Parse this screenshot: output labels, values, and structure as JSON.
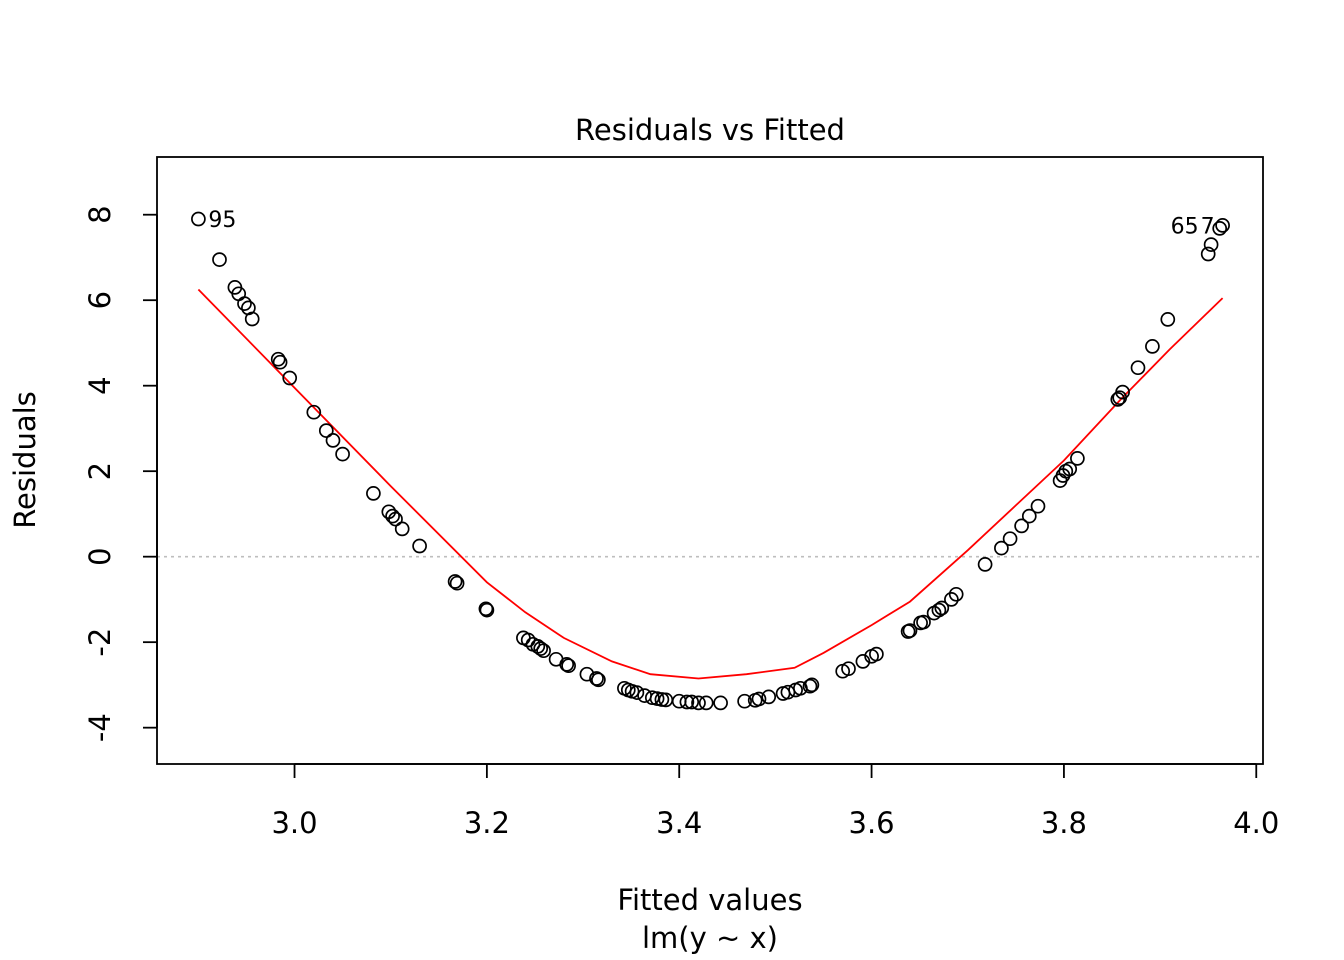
{
  "chart_data": {
    "type": "scatter",
    "title": "Residuals vs Fitted",
    "xlabel": "Fitted values",
    "subtitle": "lm(y ~ x)",
    "ylabel": "Residuals",
    "xlim": [
      2.857,
      4.007
    ],
    "ylim": [
      -4.85,
      9.35
    ],
    "xticks": [
      3.0,
      3.2,
      3.4,
      3.6,
      3.8,
      4.0
    ],
    "xtick_labels": [
      "3.0",
      "3.2",
      "3.4",
      "3.6",
      "3.8",
      "4.0"
    ],
    "yticks": [
      -4,
      -2,
      0,
      2,
      4,
      6,
      8
    ],
    "ytick_labels": [
      "-4",
      "-2",
      "0",
      "2",
      "4",
      "6",
      "8"
    ],
    "reference_line": 0,
    "point_labels": [
      {
        "x": 2.9,
        "y": 7.9,
        "label": "95",
        "side": "right"
      },
      {
        "x": 3.965,
        "y": 7.75,
        "label": "65",
        "side": "left"
      },
      {
        "x": 3.965,
        "y": 7.75,
        "label": "7",
        "side": "left-near"
      }
    ],
    "points": [
      [
        2.9,
        7.9
      ],
      [
        2.922,
        6.95
      ],
      [
        2.938,
        6.3
      ],
      [
        2.942,
        6.15
      ],
      [
        2.948,
        5.92
      ],
      [
        2.952,
        5.82
      ],
      [
        2.956,
        5.56
      ],
      [
        2.983,
        4.62
      ],
      [
        2.985,
        4.55
      ],
      [
        2.995,
        4.18
      ],
      [
        3.02,
        3.38
      ],
      [
        3.033,
        2.95
      ],
      [
        3.04,
        2.72
      ],
      [
        3.05,
        2.4
      ],
      [
        3.082,
        1.48
      ],
      [
        3.098,
        1.05
      ],
      [
        3.102,
        0.95
      ],
      [
        3.105,
        0.88
      ],
      [
        3.112,
        0.65
      ],
      [
        3.13,
        0.25
      ],
      [
        3.167,
        -0.58
      ],
      [
        3.169,
        -0.62
      ],
      [
        3.199,
        -1.22
      ],
      [
        3.2,
        -1.25
      ],
      [
        3.238,
        -1.9
      ],
      [
        3.243,
        -1.95
      ],
      [
        3.248,
        -2.05
      ],
      [
        3.253,
        -2.1
      ],
      [
        3.256,
        -2.15
      ],
      [
        3.259,
        -2.2
      ],
      [
        3.272,
        -2.4
      ],
      [
        3.283,
        -2.52
      ],
      [
        3.285,
        -2.55
      ],
      [
        3.304,
        -2.75
      ],
      [
        3.314,
        -2.85
      ],
      [
        3.316,
        -2.88
      ],
      [
        3.343,
        -3.08
      ],
      [
        3.347,
        -3.12
      ],
      [
        3.351,
        -3.15
      ],
      [
        3.356,
        -3.18
      ],
      [
        3.364,
        -3.25
      ],
      [
        3.372,
        -3.3
      ],
      [
        3.377,
        -3.32
      ],
      [
        3.382,
        -3.34
      ],
      [
        3.386,
        -3.35
      ],
      [
        3.4,
        -3.38
      ],
      [
        3.408,
        -3.4
      ],
      [
        3.413,
        -3.4
      ],
      [
        3.42,
        -3.42
      ],
      [
        3.428,
        -3.42
      ],
      [
        3.443,
        -3.42
      ],
      [
        3.468,
        -3.38
      ],
      [
        3.479,
        -3.36
      ],
      [
        3.483,
        -3.33
      ],
      [
        3.493,
        -3.28
      ],
      [
        3.508,
        -3.2
      ],
      [
        3.513,
        -3.17
      ],
      [
        3.521,
        -3.12
      ],
      [
        3.526,
        -3.08
      ],
      [
        3.536,
        -3.03
      ],
      [
        3.538,
        -3.0
      ],
      [
        3.57,
        -2.68
      ],
      [
        3.576,
        -2.62
      ],
      [
        3.591,
        -2.45
      ],
      [
        3.6,
        -2.33
      ],
      [
        3.605,
        -2.28
      ],
      [
        3.638,
        -1.75
      ],
      [
        3.64,
        -1.73
      ],
      [
        3.651,
        -1.55
      ],
      [
        3.654,
        -1.53
      ],
      [
        3.665,
        -1.32
      ],
      [
        3.67,
        -1.25
      ],
      [
        3.673,
        -1.2
      ],
      [
        3.683,
        -1.0
      ],
      [
        3.688,
        -0.88
      ],
      [
        3.718,
        -0.18
      ],
      [
        3.735,
        0.2
      ],
      [
        3.744,
        0.42
      ],
      [
        3.756,
        0.72
      ],
      [
        3.764,
        0.95
      ],
      [
        3.773,
        1.18
      ],
      [
        3.796,
        1.78
      ],
      [
        3.799,
        1.9
      ],
      [
        3.802,
        2.0
      ],
      [
        3.806,
        2.05
      ],
      [
        3.814,
        2.3
      ],
      [
        3.856,
        3.68
      ],
      [
        3.858,
        3.72
      ],
      [
        3.861,
        3.85
      ],
      [
        3.877,
        4.42
      ],
      [
        3.892,
        4.92
      ],
      [
        3.908,
        5.55
      ],
      [
        3.95,
        7.08
      ],
      [
        3.953,
        7.3
      ],
      [
        3.962,
        7.68
      ],
      [
        3.965,
        7.75
      ]
    ],
    "smooth_line": [
      [
        2.9,
        6.25
      ],
      [
        3.0,
        3.95
      ],
      [
        3.1,
        1.65
      ],
      [
        3.2,
        -0.6
      ],
      [
        3.24,
        -1.3
      ],
      [
        3.28,
        -1.9
      ],
      [
        3.33,
        -2.45
      ],
      [
        3.37,
        -2.75
      ],
      [
        3.42,
        -2.85
      ],
      [
        3.47,
        -2.75
      ],
      [
        3.52,
        -2.6
      ],
      [
        3.55,
        -2.25
      ],
      [
        3.6,
        -1.6
      ],
      [
        3.64,
        -1.05
      ],
      [
        3.7,
        0.15
      ],
      [
        3.75,
        1.2
      ],
      [
        3.8,
        2.25
      ],
      [
        3.86,
        3.7
      ],
      [
        3.91,
        4.85
      ],
      [
        3.965,
        6.05
      ]
    ],
    "colors": {
      "points": "#000000",
      "smooth": "#ff0000",
      "reference": "#bebebe"
    }
  }
}
